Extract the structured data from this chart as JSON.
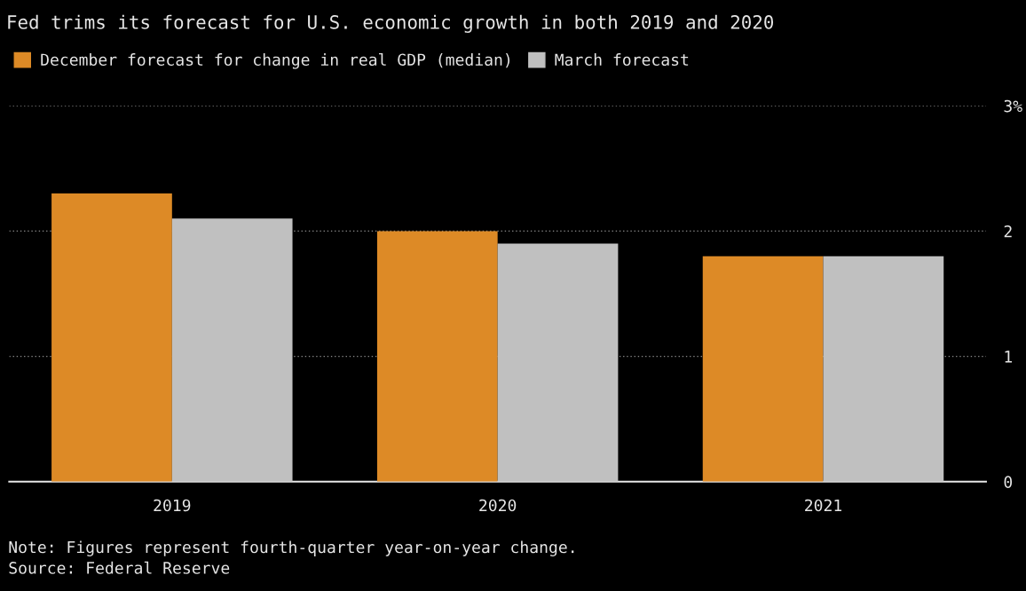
{
  "chart_data": {
    "type": "bar",
    "title": "Fed trims its forecast for U.S. economic growth in both 2019 and 2020",
    "categories": [
      "2019",
      "2020",
      "2021"
    ],
    "series": [
      {
        "name": "December forecast for change in real GDP (median)",
        "color": "#dd8a26",
        "values": [
          2.3,
          2.0,
          1.8
        ]
      },
      {
        "name": "March forecast",
        "color": "#c0c0c0",
        "values": [
          2.1,
          1.9,
          1.8
        ]
      }
    ],
    "ylim": [
      0,
      3
    ],
    "yticks": [
      0,
      1,
      2,
      {
        "value": 3,
        "label": "3%"
      }
    ],
    "grid": "y",
    "legend": "top left",
    "annotations": [
      "Note: Figures represent fourth-quarter year-on-year change.",
      "Source: Federal Reserve"
    ]
  }
}
